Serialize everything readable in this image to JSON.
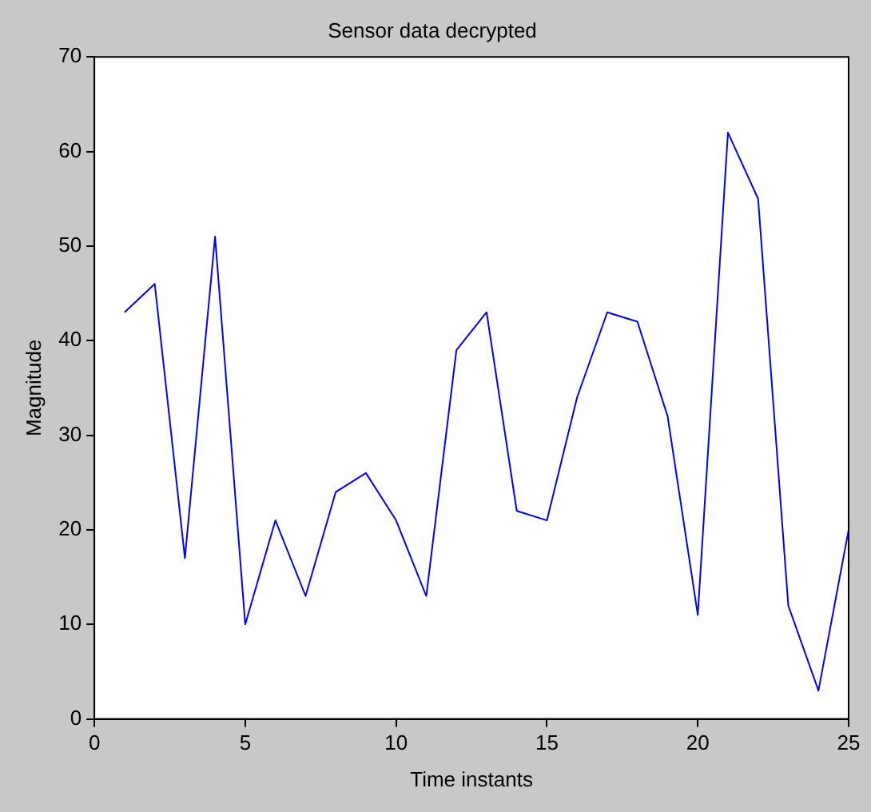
{
  "chart_data": {
    "type": "line",
    "title": "Sensor data decrypted",
    "xlabel": "Time instants",
    "ylabel": "Magnitude",
    "x": [
      1,
      2,
      3,
      4,
      5,
      6,
      7,
      8,
      9,
      10,
      11,
      12,
      13,
      14,
      15,
      16,
      17,
      18,
      19,
      20,
      21,
      22,
      23,
      24,
      25
    ],
    "series": [
      {
        "color": "#0000ff",
        "values": [
          43,
          46,
          17,
          51,
          10,
          21,
          13,
          24,
          26,
          21,
          13,
          39,
          43,
          22,
          21,
          34,
          43,
          42,
          32,
          11,
          62,
          55,
          12,
          3,
          20
        ]
      }
    ],
    "xlim": [
      0,
      25
    ],
    "xticks": [
      0,
      5,
      10,
      15,
      20,
      25
    ],
    "ylim": [
      0,
      70
    ],
    "yticks": [
      0,
      10,
      20,
      30,
      40,
      50,
      60,
      70
    ],
    "grid": false,
    "legend": false,
    "marker": "none",
    "line_style": "solid"
  }
}
